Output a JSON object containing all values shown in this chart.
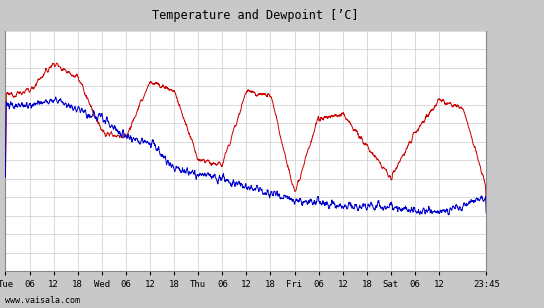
{
  "title": "Temperature and Dewpoint [’C]",
  "watermark": "www.vaisala.com",
  "bg_color": "#c8c8c8",
  "plot_bg_color": "#ffffff",
  "grid_color": "#cccccc",
  "temp_color": "#cc0000",
  "dew_color": "#0000cc",
  "ylim": [
    -2,
    24
  ],
  "yticks": [
    -2,
    0,
    2,
    4,
    6,
    8,
    10,
    12,
    14,
    16,
    18,
    20,
    22,
    24
  ],
  "x_tick_labels": [
    "Tue",
    "06",
    "12",
    "18",
    "Wed",
    "06",
    "12",
    "18",
    "Thu",
    "06",
    "12",
    "18",
    "Fri",
    "06",
    "12",
    "18",
    "Sat",
    "06",
    "12",
    "23:45"
  ],
  "tick_positions": [
    0,
    6,
    12,
    18,
    24,
    30,
    36,
    42,
    48,
    54,
    60,
    66,
    72,
    78,
    84,
    90,
    96,
    102,
    108,
    119.75
  ],
  "line_width": 0.7,
  "noise_scale_temp": 0.4,
  "noise_scale_dew": 0.5
}
